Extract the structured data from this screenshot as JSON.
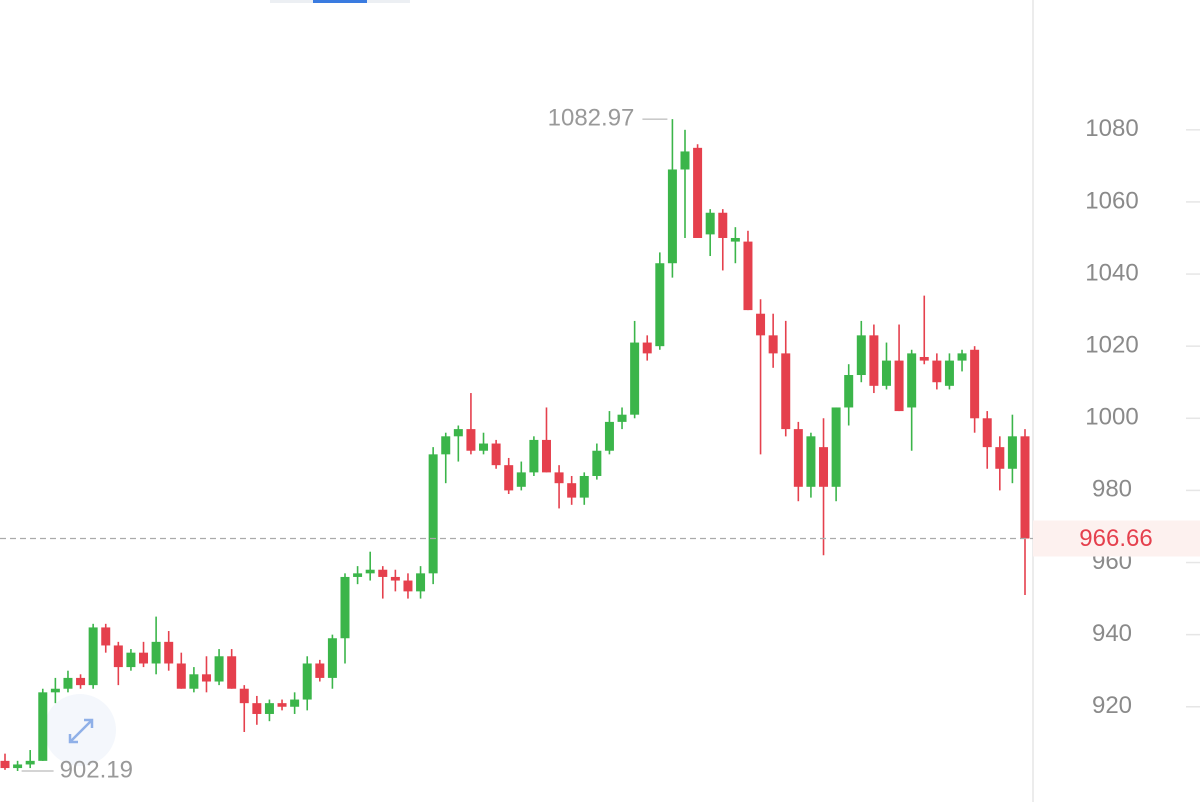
{
  "chart_data": {
    "type": "candlestick",
    "up_color": "#3bb54a",
    "down_color": "#e5404d",
    "open": [
      905,
      903,
      904,
      905,
      924,
      925,
      928,
      926,
      942,
      937,
      931,
      935,
      932,
      938,
      932,
      925,
      929,
      927,
      934,
      925,
      921,
      918,
      921,
      920,
      922,
      932,
      928,
      939,
      956,
      957,
      958,
      956,
      955,
      952,
      957,
      990,
      995,
      997,
      991,
      993,
      987,
      981,
      985,
      994,
      985,
      982,
      978,
      984,
      991,
      999,
      1001,
      1021,
      1020,
      1043,
      1069,
      1075,
      1051,
      1057,
      1049,
      1049,
      1029,
      1023,
      1018,
      997,
      981,
      992,
      981,
      1003,
      1012,
      1023,
      1009,
      1016,
      1003,
      1017,
      1016,
      1009,
      1016,
      1019,
      1000,
      992,
      986,
      995
    ],
    "high": [
      907,
      905,
      908,
      925,
      928,
      930,
      929,
      943,
      943,
      938,
      936,
      938,
      945,
      941,
      935,
      931,
      934,
      936,
      936,
      926,
      923,
      922,
      922,
      924,
      934,
      933,
      940,
      957,
      959,
      963,
      959,
      958,
      957,
      959,
      992,
      996,
      998,
      1007,
      996,
      994,
      989,
      988,
      995,
      1003,
      987,
      984,
      985,
      993,
      1002,
      1003,
      1027,
      1023,
      1046,
      1082.97,
      1080,
      1076,
      1058,
      1058,
      1053,
      1052,
      1033,
      1029,
      1027,
      999,
      996,
      1000,
      1003,
      1015,
      1027,
      1026,
      1021,
      1026,
      1019,
      1034,
      1018,
      1018,
      1019,
      1020,
      1002,
      995,
      1001,
      997
    ],
    "low": [
      902.5,
      902.19,
      903,
      905,
      921,
      924,
      925,
      925,
      935,
      926,
      930,
      931,
      929,
      930,
      925,
      924,
      924,
      926,
      925,
      913,
      915,
      916,
      919,
      918,
      919,
      927,
      925,
      932,
      954,
      955,
      950,
      952,
      950,
      950,
      954,
      982,
      988,
      990,
      990,
      986,
      979,
      980,
      984,
      985,
      975,
      976,
      976,
      983,
      990,
      997,
      1000,
      1016,
      1019,
      1039,
      1050,
      1050,
      1045,
      1041,
      1043,
      1030,
      990,
      1014,
      995,
      977,
      978,
      962,
      977,
      998,
      1010,
      1007,
      1008,
      1002,
      991,
      1015,
      1008,
      1008,
      1013,
      996,
      986,
      980,
      982,
      951
    ],
    "close": [
      903,
      904,
      905,
      924,
      925,
      928,
      926,
      942,
      937,
      931,
      935,
      932,
      938,
      932,
      925,
      929,
      927,
      934,
      925,
      921,
      918,
      921,
      920,
      922,
      932,
      928,
      939,
      956,
      957,
      958,
      956,
      955,
      952,
      957,
      990,
      995,
      997,
      991,
      993,
      987,
      980,
      985,
      994,
      985,
      982,
      978,
      984,
      991,
      999,
      1001,
      1021,
      1018,
      1043,
      1069,
      1074,
      1050,
      1057,
      1050,
      1050,
      1030,
      1023,
      1018,
      997,
      981,
      995,
      981,
      1003,
      1012,
      1023,
      1009,
      1016,
      1002,
      1018,
      1016,
      1010,
      1016,
      1018,
      1000,
      992,
      986,
      995,
      966.66
    ],
    "ylim": [
      896,
      1116
    ],
    "yticks": [
      920,
      940,
      960,
      980,
      1000,
      1020,
      1040,
      1060,
      1080
    ],
    "high_marker": {
      "value": 1082.97,
      "label": "1082.97"
    },
    "low_marker": {
      "value": 902.19,
      "label": "902.19"
    },
    "last_price": {
      "value": 966.66,
      "label": "966.66"
    }
  }
}
